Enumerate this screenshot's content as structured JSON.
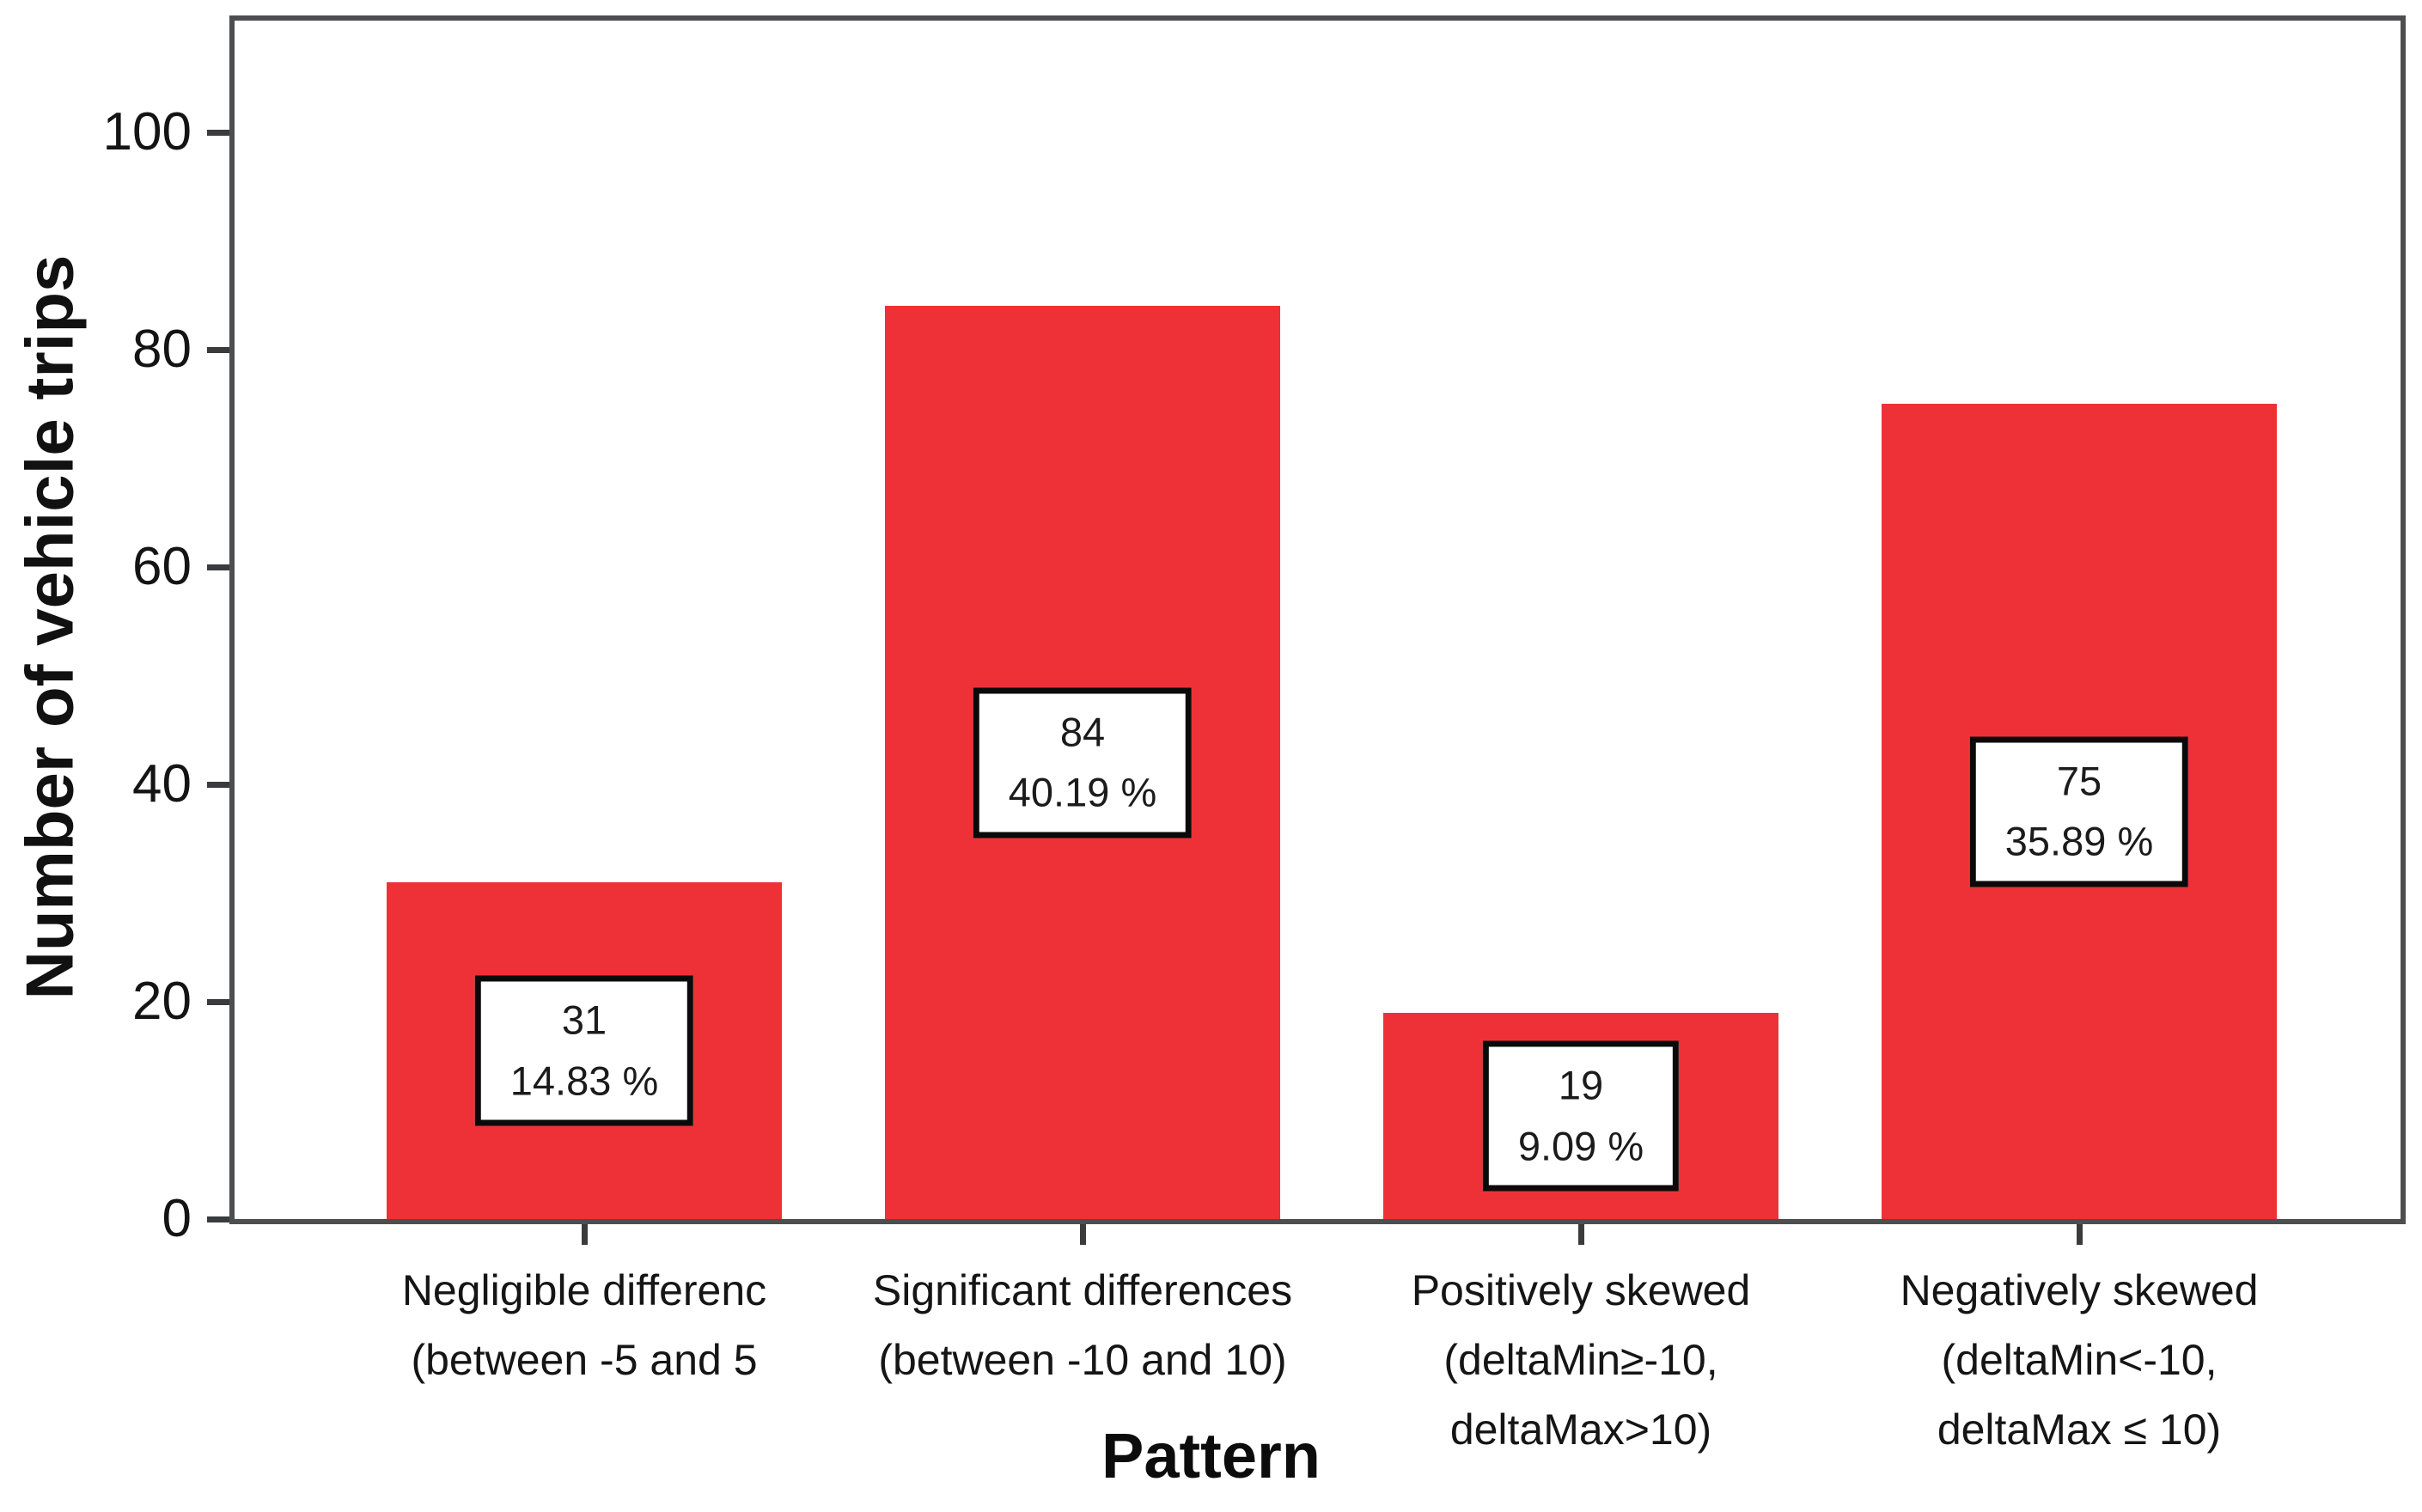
{
  "chart_data": {
    "type": "bar",
    "title": "",
    "xlabel": "Pattern",
    "ylabel": "Number of vehicle trips",
    "ylim": [
      0,
      110
    ],
    "yticks": [
      0,
      20,
      40,
      60,
      80,
      100
    ],
    "grid": false,
    "bar_color": "#ee3137",
    "axis_color": "#4d4e50",
    "categories": [
      {
        "label_lines": [
          "Negligible differenc",
          "(between -5 and 5"
        ],
        "value": 31,
        "pct": "14.83 %"
      },
      {
        "label_lines": [
          "Significant differences",
          "(between -10 and 10)"
        ],
        "value": 84,
        "pct": "40.19 %"
      },
      {
        "label_lines": [
          "Positively skewed",
          "(deltaMin≥-10,",
          "deltaMax>10)"
        ],
        "value": 19,
        "pct": "9.09 %"
      },
      {
        "label_lines": [
          "Negatively skewed",
          "(deltaMin<-10,",
          "deltaMax ≤ 10)"
        ],
        "value": 75,
        "pct": "35.89 %"
      }
    ]
  }
}
